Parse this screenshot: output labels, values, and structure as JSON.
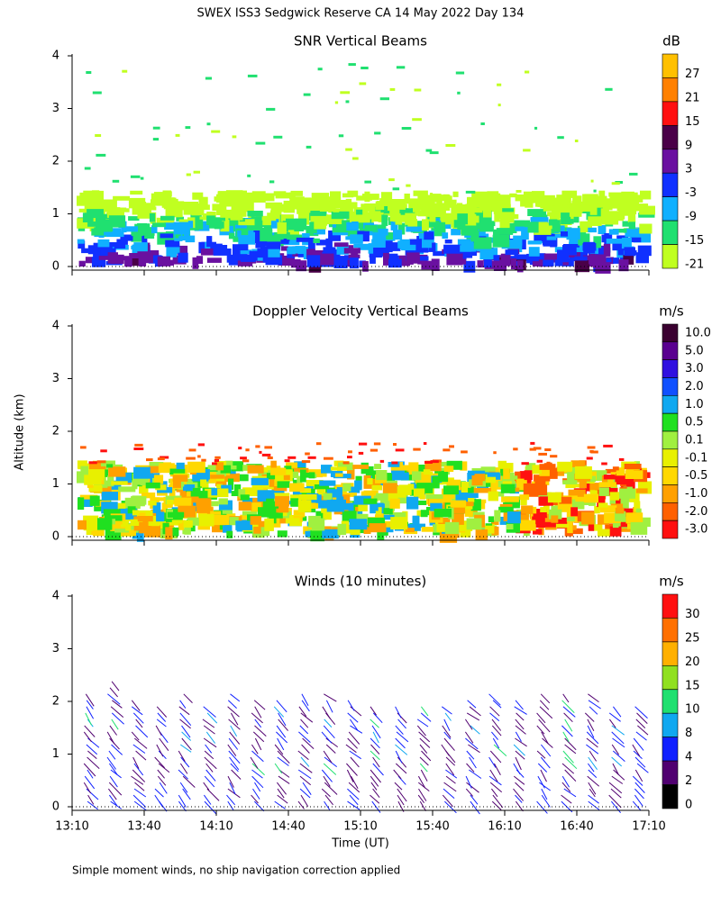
{
  "title": "SWEX ISS3 Sedgwick Reserve CA  14 May 2022 Day 134",
  "y_axis_label": "Altitude (km)",
  "x_axis_label": "Time (UT)",
  "footnote": "Simple moment winds, no ship navigation correction applied",
  "xlim": [
    790,
    1030
  ],
  "xticks": [
    {
      "value": 790,
      "label": "13:10"
    },
    {
      "value": 820,
      "label": "13:40"
    },
    {
      "value": 850,
      "label": "14:10"
    },
    {
      "value": 880,
      "label": "14:40"
    },
    {
      "value": 910,
      "label": "15:10"
    },
    {
      "value": 940,
      "label": "15:40"
    },
    {
      "value": 970,
      "label": "16:10"
    },
    {
      "value": 1000,
      "label": "16:40"
    },
    {
      "value": 1030,
      "label": "17:10"
    }
  ],
  "ylim": [
    0,
    4
  ],
  "yticks": [
    0,
    1,
    2,
    3,
    4
  ],
  "panels": [
    {
      "title": "SNR Vertical Beams",
      "units": "dB",
      "colorbar_labels": [
        "27",
        "21",
        "15",
        "9",
        "3",
        "-3",
        "-9",
        "-15",
        "-21"
      ],
      "colors": [
        "#ffc000",
        "#ff8000",
        "#ff1010",
        "#4a0048",
        "#6a10a0",
        "#1030ff",
        "#10b0ff",
        "#20e070",
        "#c0ff20"
      ]
    },
    {
      "title": "Doppler Velocity Vertical Beams",
      "units": "m/s",
      "colorbar_labels": [
        "10.0",
        "5.0",
        "3.0",
        "2.0",
        "1.0",
        "0.5",
        "0.1",
        "-0.1",
        "-0.5",
        "-1.0",
        "-2.0",
        "-3.0"
      ],
      "colors": [
        "#3a0030",
        "#5a0090",
        "#3010e0",
        "#1050ff",
        "#10a8f0",
        "#20e020",
        "#a0f040",
        "#e8f000",
        "#ffd800",
        "#ffa000",
        "#ff6000",
        "#ff1010"
      ]
    },
    {
      "title": "Winds (10 minutes)",
      "units": "m/s",
      "colorbar_labels": [
        "30",
        "25",
        "20",
        "15",
        "10",
        "8",
        "4",
        "2",
        "0"
      ],
      "colors": [
        "#ff1010",
        "#ff7000",
        "#ffb000",
        "#90e020",
        "#20e070",
        "#10a8f0",
        "#1020ff",
        "#500070",
        "#000000"
      ]
    }
  ]
}
